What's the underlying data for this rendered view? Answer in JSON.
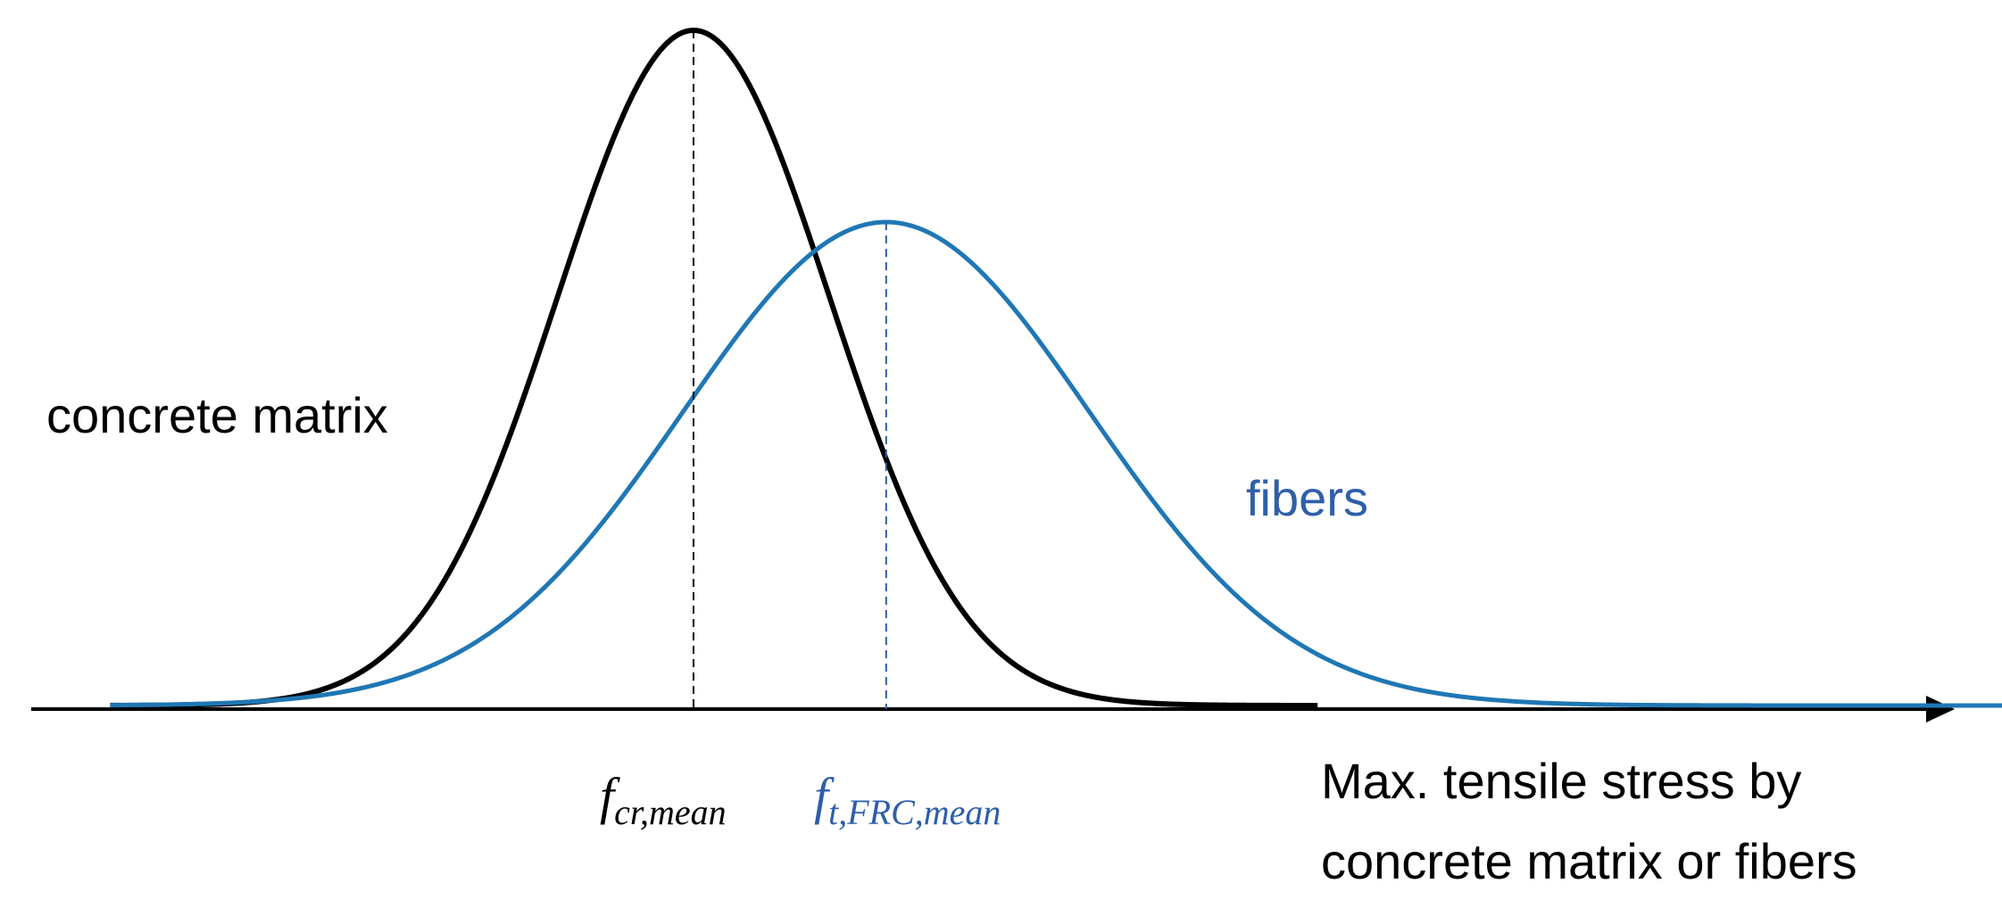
{
  "chart_data": {
    "type": "line",
    "title": "",
    "xlabel": [
      "Max. tensile stress by",
      "concrete matrix or fibers"
    ],
    "ylabel": "",
    "grid": false,
    "axis": {
      "x_arrow": true,
      "y_axis_visible": false
    },
    "series": [
      {
        "name": "concrete matrix",
        "distribution": "normal",
        "mean": 0,
        "std": 1,
        "peak_relative": 1.0,
        "x_min": -4.3,
        "x_max": 4.6,
        "color": "#000000"
      },
      {
        "name": "fibers",
        "distribution": "normal",
        "mean": 1.42,
        "std": 1.5,
        "peak_relative": 0.716,
        "x_min": -4.3,
        "x_max": 9.8,
        "color": "#1f77b4"
      }
    ],
    "mean_markers": [
      {
        "series": "concrete matrix",
        "x": 0,
        "label_main": "f",
        "label_sub": "cr,mean",
        "color": "#000000"
      },
      {
        "series": "fibers",
        "x": 1.42,
        "label_main": "f",
        "label_sub": "t,FRC,mean",
        "color": "#2e5fa8"
      }
    ],
    "x_range": [
      -4.3,
      10.3
    ]
  },
  "labels": {
    "concrete_matrix": "concrete matrix",
    "fibers": "fibers"
  },
  "colors": {
    "concrete_curve": "#000000",
    "fiber_curve": "#1f77b4",
    "fiber_text": "#2e5fa8",
    "axis": "#000000"
  }
}
